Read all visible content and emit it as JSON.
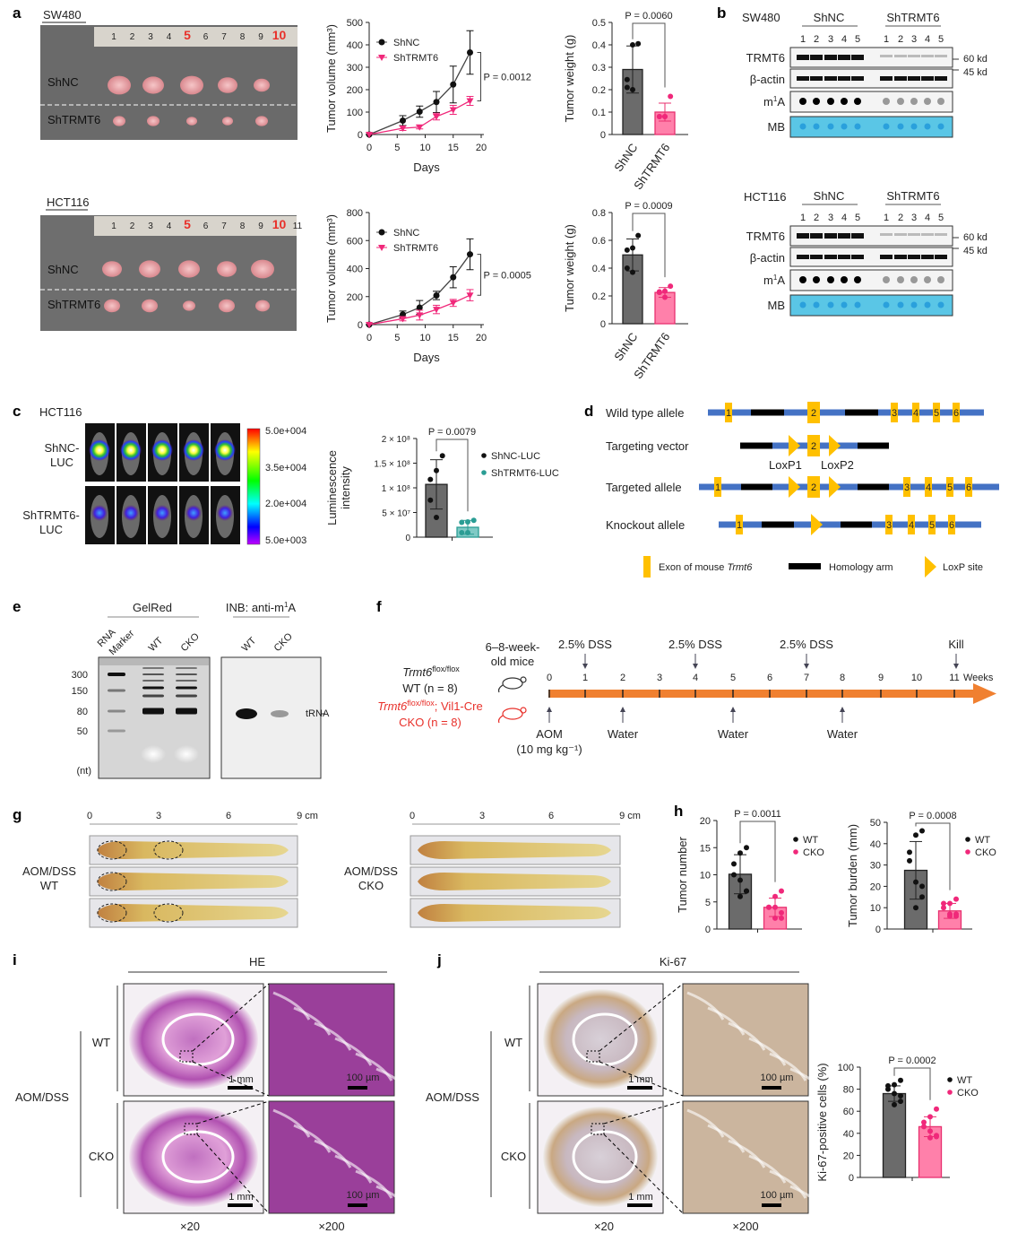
{
  "panel_labels": {
    "a": "a",
    "b": "b",
    "c": "c",
    "d": "d",
    "e": "e",
    "f": "f",
    "g": "g",
    "h": "h",
    "i": "i",
    "j": "j"
  },
  "panel_a": {
    "sw480_title": "SW480",
    "hct116_title": "HCT116",
    "ruler_numbers": [
      "1",
      "2",
      "3",
      "4",
      "5",
      "6",
      "7",
      "8",
      "9",
      "10"
    ],
    "ruler_numbers_hct": [
      "1",
      "2",
      "3",
      "4",
      "5",
      "6",
      "7",
      "8",
      "9",
      "10",
      "11"
    ],
    "row_top": "ShNC",
    "row_bottom": "ShTRMT6"
  },
  "panel_b": {
    "sw480_title": "SW480",
    "hct116_title": "HCT116",
    "group1": "ShNC",
    "group2": "ShTRMT6",
    "lanes": [
      "1",
      "2",
      "3",
      "4",
      "5"
    ],
    "rows": [
      "TRMT6",
      "β-actin",
      "m",
      "MB"
    ],
    "m1a_sup": "1",
    "m1a_base": "A",
    "kd_60": "60 kd",
    "kd_45": "45 kd",
    "mb_color": "#5ac6e6"
  },
  "panel_c": {
    "title": "HCT116",
    "row1": [
      "ShNC-",
      "LUC"
    ],
    "row2": [
      "ShTRMT6-",
      "LUC"
    ],
    "colorbar_ticks": [
      "5.0e+004",
      "3.5e+004",
      "2.0e+004",
      "5.0e+003"
    ]
  },
  "panel_d": {
    "rows": [
      "Wild type allele",
      "Targeting vector",
      "Targeted allele",
      "Knockout allele"
    ],
    "loxp1": "LoxP1",
    "loxp2": "LoxP2",
    "exons": [
      "1",
      "2",
      "3",
      "4",
      "5",
      "6"
    ],
    "legend_exon": "Exon of mouse ",
    "legend_exon_gene": "Trmt6",
    "legend_arm": "Homology arm",
    "legend_loxp": "LoxP site",
    "colors": {
      "line": "#4472c4",
      "exon": "#ffc000",
      "arm": "#000000"
    }
  },
  "panel_e": {
    "gelred": "GelRed",
    "inb": "INB: anti-m",
    "inb_sup": "1",
    "inb_end": "A",
    "lanes_gel": [
      "RNA",
      "Marker",
      "WT",
      "CKO"
    ],
    "lanes_inb": [
      "WT",
      "CKO"
    ],
    "sizes": [
      "300",
      "150",
      "80",
      "50"
    ],
    "unit": "(nt)",
    "band": "tRNA"
  },
  "panel_f": {
    "mice": [
      "6–8-week-",
      "old mice"
    ],
    "wt_gene": "Trmt6",
    "wt_sup": "flox/flox",
    "wt_label": "WT (n = 8)",
    "cko_gene": "Trmt6",
    "cko_sup": "flox/flox",
    "cko_rest": "; Vil1-Cre",
    "cko_label": "CKO (n = 8)",
    "weeks": [
      "0",
      "1",
      "2",
      "3",
      "4",
      "5",
      "6",
      "7",
      "8",
      "9",
      "10",
      "11"
    ],
    "weeks_unit": "Weeks",
    "top_events": [
      "2.5% DSS",
      "2.5% DSS",
      "2.5% DSS",
      "Kill"
    ],
    "bottom_events": [
      "AOM",
      "Water",
      "Water",
      "Water"
    ],
    "aom_dose": "(10 mg kg⁻¹)",
    "arrow_color": "#f08030"
  },
  "panel_g": {
    "scale": [
      "0",
      "3",
      "6",
      "9 cm"
    ],
    "left_label": [
      "AOM/DSS",
      "WT"
    ],
    "right_label": [
      "AOM/DSS",
      "CKO"
    ]
  },
  "panel_i": {
    "title": "HE",
    "group": "AOM/DSS",
    "rows": [
      "WT",
      "CKO"
    ],
    "scale_low": "1 mm",
    "scale_high": "100 µm",
    "mag_low": "×20",
    "mag_high": "×200"
  },
  "panel_j": {
    "title": "Ki-67",
    "group": "AOM/DSS",
    "rows": [
      "WT",
      "CKO"
    ],
    "scale_low": "1 mm",
    "scale_high": "100 µm",
    "mag_low": "×20",
    "mag_high": "×200"
  },
  "colors": {
    "control": "#6b6b6b",
    "knockdown": "#ff80aa",
    "knockdown_edge": "#e8306f",
    "luc": "#7fcac5",
    "luc_edge": "#2a9d94",
    "marker_pink": "#f0287a"
  },
  "chart_data": [
    {
      "type": "line",
      "panel": "a",
      "xlabel": "Days",
      "ylabel": "Tumor volume (mm³)",
      "xlim": [
        0,
        20
      ],
      "ylim": [
        0,
        500
      ],
      "xticks": [
        0,
        5,
        10,
        15,
        20
      ],
      "yticks": [
        0,
        100,
        200,
        300,
        400,
        500
      ],
      "x": [
        0,
        6,
        9,
        12,
        15,
        18
      ],
      "series": [
        {
          "name": "ShNC",
          "values": [
            0,
            62,
            102,
            145,
            223,
            366
          ],
          "errors": [
            0,
            22,
            25,
            47,
            82,
            97
          ]
        },
        {
          "name": "ShTRMT6",
          "values": [
            0,
            28,
            33,
            80,
            110,
            150
          ],
          "errors": [
            0,
            10,
            8,
            15,
            20,
            20
          ]
        }
      ],
      "p_value": "P = 0.0012"
    },
    {
      "type": "bar",
      "panel": "a",
      "ylabel": "Tumor weight (g)",
      "ylim": [
        0,
        0.5
      ],
      "yticks": [
        0,
        0.1,
        0.2,
        0.3,
        0.4,
        0.5
      ],
      "ytick_labels": [
        "0",
        "0.1",
        "0.2",
        "0.3",
        "0.4",
        "0.5"
      ],
      "categories": [
        "ShNC",
        "ShTRMT6"
      ],
      "values": [
        0.29,
        0.1
      ],
      "errors": [
        0.105,
        0.04
      ],
      "points": [
        [
          0.405,
          0.4,
          0.245,
          0.21,
          0.2
        ],
        [
          0.17,
          0.08,
          0.08,
          0.08,
          0.08
        ]
      ],
      "p_value": "P = 0.0060"
    },
    {
      "type": "line",
      "panel": "a",
      "xlabel": "Days",
      "ylabel": "Tumor volume (mm³)",
      "xlim": [
        0,
        20
      ],
      "ylim": [
        0,
        800
      ],
      "xticks": [
        0,
        5,
        10,
        15,
        20
      ],
      "yticks": [
        0,
        200,
        400,
        600,
        800
      ],
      "x": [
        0,
        6,
        9,
        12,
        15,
        18
      ],
      "series": [
        {
          "name": "ShNC",
          "values": [
            0,
            72,
            122,
            208,
            338,
            502
          ],
          "errors": [
            0,
            25,
            50,
            30,
            75,
            110
          ]
        },
        {
          "name": "ShTRMT6",
          "values": [
            0,
            42,
            68,
            108,
            155,
            210
          ],
          "errors": [
            0,
            15,
            35,
            30,
            25,
            40
          ]
        }
      ],
      "p_value": "P = 0.0005"
    },
    {
      "type": "bar",
      "panel": "a",
      "ylabel": "Tumor weight (g)",
      "ylim": [
        0,
        0.8
      ],
      "yticks": [
        0,
        0.2,
        0.4,
        0.6,
        0.8
      ],
      "ytick_labels": [
        "0",
        "0.2",
        "0.4",
        "0.6",
        "0.8"
      ],
      "categories": [
        "ShNC",
        "ShTRMT6"
      ],
      "values": [
        0.495,
        0.225
      ],
      "errors": [
        0.115,
        0.035
      ],
      "points": [
        [
          0.635,
          0.545,
          0.53,
          0.4,
          0.37
        ],
        [
          0.27,
          0.235,
          0.23,
          0.225,
          0.19
        ]
      ],
      "p_value": "P = 0.0009"
    },
    {
      "type": "bar",
      "panel": "c",
      "ylabel": "Luminescence intensity",
      "ylim": [
        0,
        200000000
      ],
      "yticks": [
        0,
        50000000,
        100000000,
        150000000,
        200000000
      ],
      "ytick_labels": [
        "0",
        "5 × 10⁷",
        "1 × 10⁸",
        "1.5 × 10⁸",
        "2 × 10⁸"
      ],
      "categories": [
        "ShNC-LUC",
        "ShTRMT6-LUC"
      ],
      "values": [
        107000000,
        20000000
      ],
      "errors": [
        50000000,
        14000000
      ],
      "points": [
        [
          165000000,
          135000000,
          117000000,
          75000000,
          40000000
        ],
        [
          34000000,
          31000000,
          30000000,
          9000000,
          9000000
        ]
      ],
      "p_value": "P = 0.0079",
      "legend": [
        "ShNC-LUC",
        "ShTRMT6-LUC"
      ]
    },
    {
      "type": "bar",
      "panel": "h",
      "ylabel": "Tumor number",
      "ylim": [
        0,
        20
      ],
      "yticks": [
        0,
        5,
        10,
        15,
        20
      ],
      "ytick_labels": [
        "0",
        "5",
        "10",
        "15",
        "20"
      ],
      "categories": [
        "WT",
        "CKO"
      ],
      "values": [
        10.1,
        4.0
      ],
      "errors": [
        3.6,
        1.7
      ],
      "points": [
        [
          15,
          14,
          12,
          10,
          9,
          7,
          7,
          6
        ],
        [
          7,
          6,
          4,
          4,
          4,
          3,
          2,
          2
        ]
      ],
      "p_value": "P = 0.0011",
      "legend": [
        "WT",
        "CKO"
      ]
    },
    {
      "type": "bar",
      "panel": "h",
      "ylabel": "Tumor burden (mm)",
      "ylim": [
        0,
        50
      ],
      "yticks": [
        0,
        10,
        20,
        30,
        40,
        50
      ],
      "ytick_labels": [
        "0",
        "10",
        "20",
        "30",
        "40",
        "50"
      ],
      "categories": [
        "WT",
        "CKO"
      ],
      "values": [
        27.5,
        8.5
      ],
      "errors": [
        13.5,
        3.5
      ],
      "points": [
        [
          46,
          44,
          36,
          32,
          22,
          20,
          15,
          10
        ],
        [
          14,
          12,
          12,
          10,
          7,
          7,
          6,
          6
        ]
      ],
      "p_value": "P = 0.0008",
      "legend": [
        "WT",
        "CKO"
      ]
    },
    {
      "type": "bar",
      "panel": "j",
      "ylabel": "Ki-67-positive cells (%)",
      "ylim": [
        0,
        100
      ],
      "yticks": [
        0,
        20,
        40,
        60,
        80,
        100
      ],
      "ytick_labels": [
        "0",
        "20",
        "40",
        "60",
        "80",
        "100"
      ],
      "categories": [
        "WT",
        "CKO"
      ],
      "values": [
        76,
        46
      ],
      "errors": [
        7,
        9
      ],
      "points": [
        [
          88,
          84,
          83,
          80,
          76,
          74,
          69,
          66
        ],
        [
          62,
          55,
          50,
          46,
          42,
          38,
          37,
          36
        ]
      ],
      "p_value": "P = 0.0002",
      "legend": [
        "WT",
        "CKO"
      ]
    }
  ]
}
